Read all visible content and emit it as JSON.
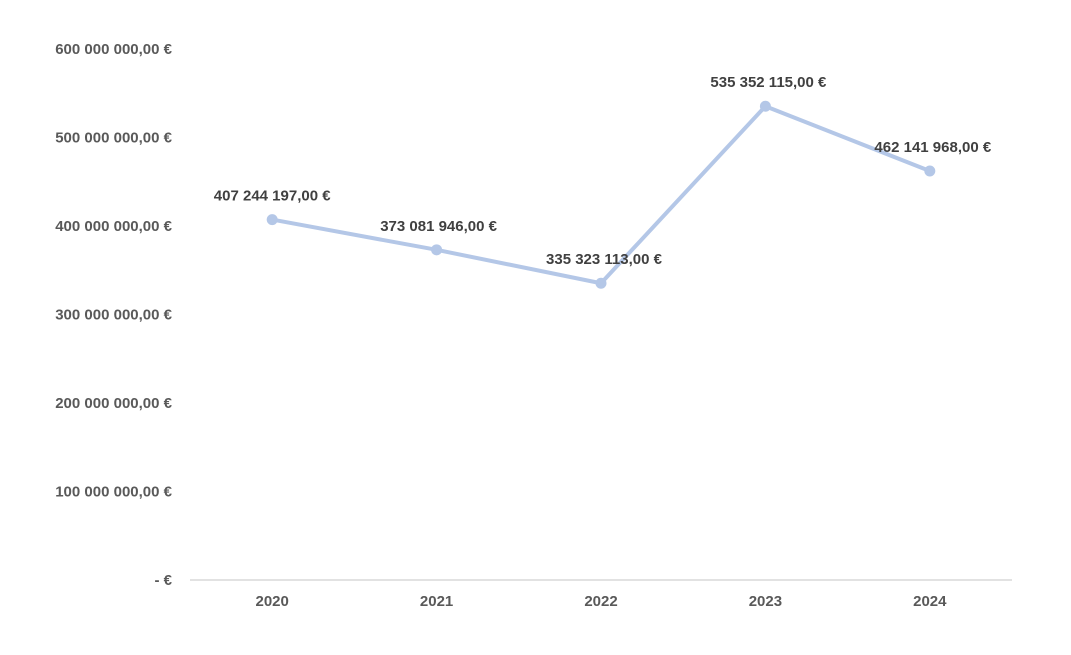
{
  "chart_data": {
    "type": "line",
    "title": "",
    "xlabel": "",
    "ylabel": "",
    "categories": [
      "2020",
      "2021",
      "2022",
      "2023",
      "2024"
    ],
    "series": [
      {
        "values": [
          407244197,
          373081946,
          335323113,
          535352115,
          462141968
        ],
        "data_labels": [
          "407 244 197,00 €",
          "373 081 946,00 €",
          "335 323 113,00 €",
          "535 352 115,00 €",
          "462 141 968,00 €"
        ],
        "color": "#b4c7e7"
      }
    ],
    "ylim": [
      0,
      600000000
    ],
    "yticks": [
      0,
      100000000,
      200000000,
      300000000,
      400000000,
      500000000,
      600000000
    ],
    "ytick_labels": [
      "-  €",
      "100 000 000,00 €",
      "200 000 000,00 €",
      "300 000 000,00 €",
      "400 000 000,00 €",
      "500 000 000,00 €",
      "600 000 000,00 €"
    ],
    "grid": false,
    "legend": "none",
    "axis_color": "#d9d9d9"
  }
}
